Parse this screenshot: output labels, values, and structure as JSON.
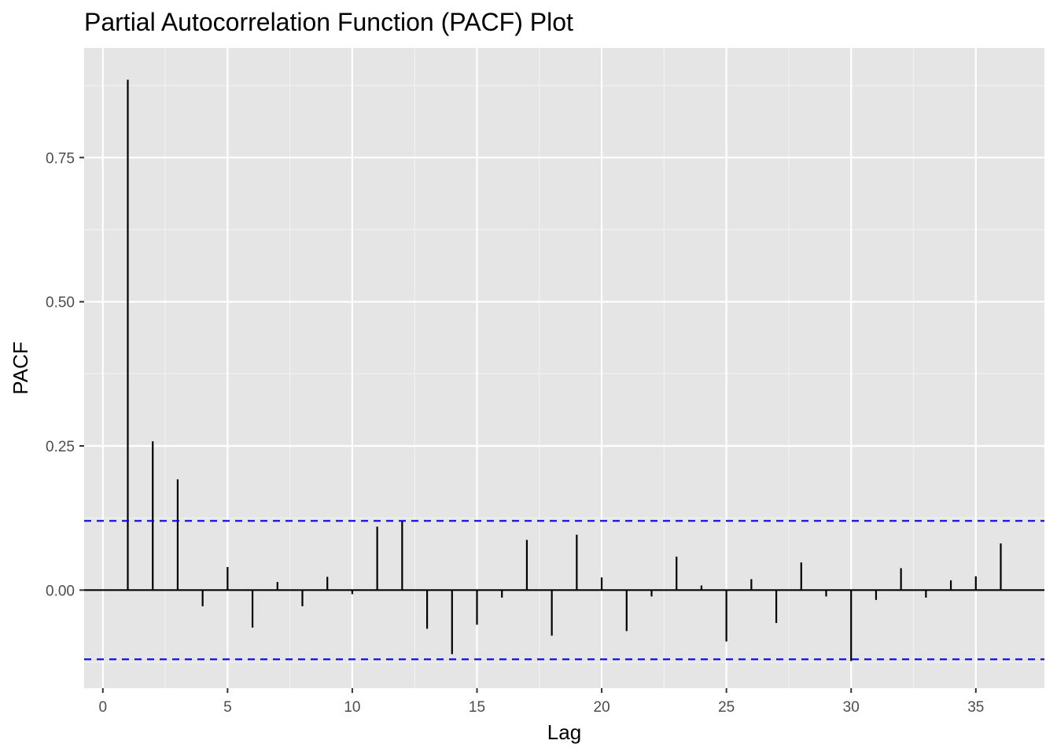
{
  "chart_data": {
    "type": "bar",
    "title": "Partial Autocorrelation Function (PACF) Plot",
    "xlabel": "Lag",
    "ylabel": "PACF",
    "xlim": [
      -0.75,
      37.75
    ],
    "ylim": [
      -0.17,
      0.94
    ],
    "x_ticks": [
      0,
      5,
      10,
      15,
      20,
      25,
      30,
      35
    ],
    "x_tick_labels": [
      "0",
      "5",
      "10",
      "15",
      "20",
      "25",
      "30",
      "35"
    ],
    "y_ticks": [
      0,
      0.25,
      0.5,
      0.75
    ],
    "y_tick_labels": [
      "0.00",
      "0.25",
      "0.50",
      "0.75"
    ],
    "grid": true,
    "confidence_bound": 0.12,
    "lags": [
      1,
      2,
      3,
      4,
      5,
      6,
      7,
      8,
      9,
      10,
      11,
      12,
      13,
      14,
      15,
      16,
      17,
      18,
      19,
      20,
      21,
      22,
      23,
      24,
      25,
      26,
      27,
      28,
      29,
      30,
      31,
      32,
      33,
      34,
      35,
      36
    ],
    "values": [
      0.885,
      0.258,
      0.192,
      -0.028,
      0.04,
      -0.065,
      0.014,
      -0.028,
      0.023,
      -0.007,
      0.11,
      0.12,
      -0.067,
      -0.111,
      -0.06,
      -0.013,
      0.087,
      -0.079,
      0.096,
      0.022,
      -0.071,
      -0.011,
      0.058,
      0.008,
      -0.089,
      0.019,
      -0.057,
      0.048,
      -0.011,
      -0.123,
      -0.017,
      0.038,
      -0.013,
      0.017,
      0.024,
      0.081
    ],
    "colors": {
      "panel_background": "#e5e5e5",
      "grid_major": "#ffffff",
      "grid_minor": "#f2f2f2",
      "bars": "#000000",
      "confidence_line": "#0000ff",
      "zero_line": "#000000"
    }
  }
}
